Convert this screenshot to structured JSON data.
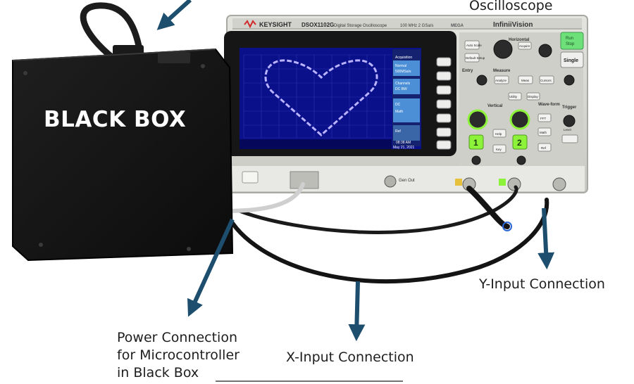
{
  "labels": {
    "oscilloscope": "Oscilloscope",
    "black_box": "BLACK BOX",
    "y_input": "Y-Input Connection",
    "x_input": "X-Input Connection",
    "power_lines": [
      "Power Connection",
      "for Microcontroller",
      "in Black Box"
    ]
  },
  "scope": {
    "brand": "KEYSIGHT",
    "model": "DSOX1102G",
    "model_desc": "Digital Storage Oscilloscope",
    "spec": "100 MHz  2 GSa/s",
    "series": "InfiniiVision",
    "mega": "MEGA",
    "menu_title": "Acquisition",
    "menu_items": [
      "Normal",
      "500MSa/s",
      "Channels",
      "DC  BW",
      "DC",
      "Math",
      "Ref"
    ],
    "date": "May 21, 2021",
    "time": "08:38 AM",
    "buttons": {
      "run_stop": [
        "Run",
        "Stop"
      ],
      "single": "Single",
      "horizontal": "Horizontal",
      "measure": "Measure",
      "vertical": "Vertical",
      "waveform": "Wave-form",
      "trigger": "Trigger",
      "entry": "Entry",
      "auto_scale": "Auto Scale",
      "default_setup": "Default Setup",
      "acquire": "Acquire",
      "analyze": "Analyze",
      "meas": "Meas",
      "cursors": "Cursors",
      "utility": "Utility",
      "display": "Display",
      "help": "Help",
      "key": "Key",
      "math": "Math",
      "ref": "Ref",
      "fft": "FFT",
      "level": "Level",
      "gen_out": "Gen Out",
      "ch1": "1",
      "ch2": "2"
    }
  },
  "colors": {
    "arrow": "#1d4e6e",
    "box": "#141414",
    "scope_body": "#d9d9d4",
    "screen_bg": "#0a0f8a",
    "trace": "#b9b2ff",
    "ch_green": "#8cf23a",
    "menu_blue": "#4d8fd6"
  }
}
